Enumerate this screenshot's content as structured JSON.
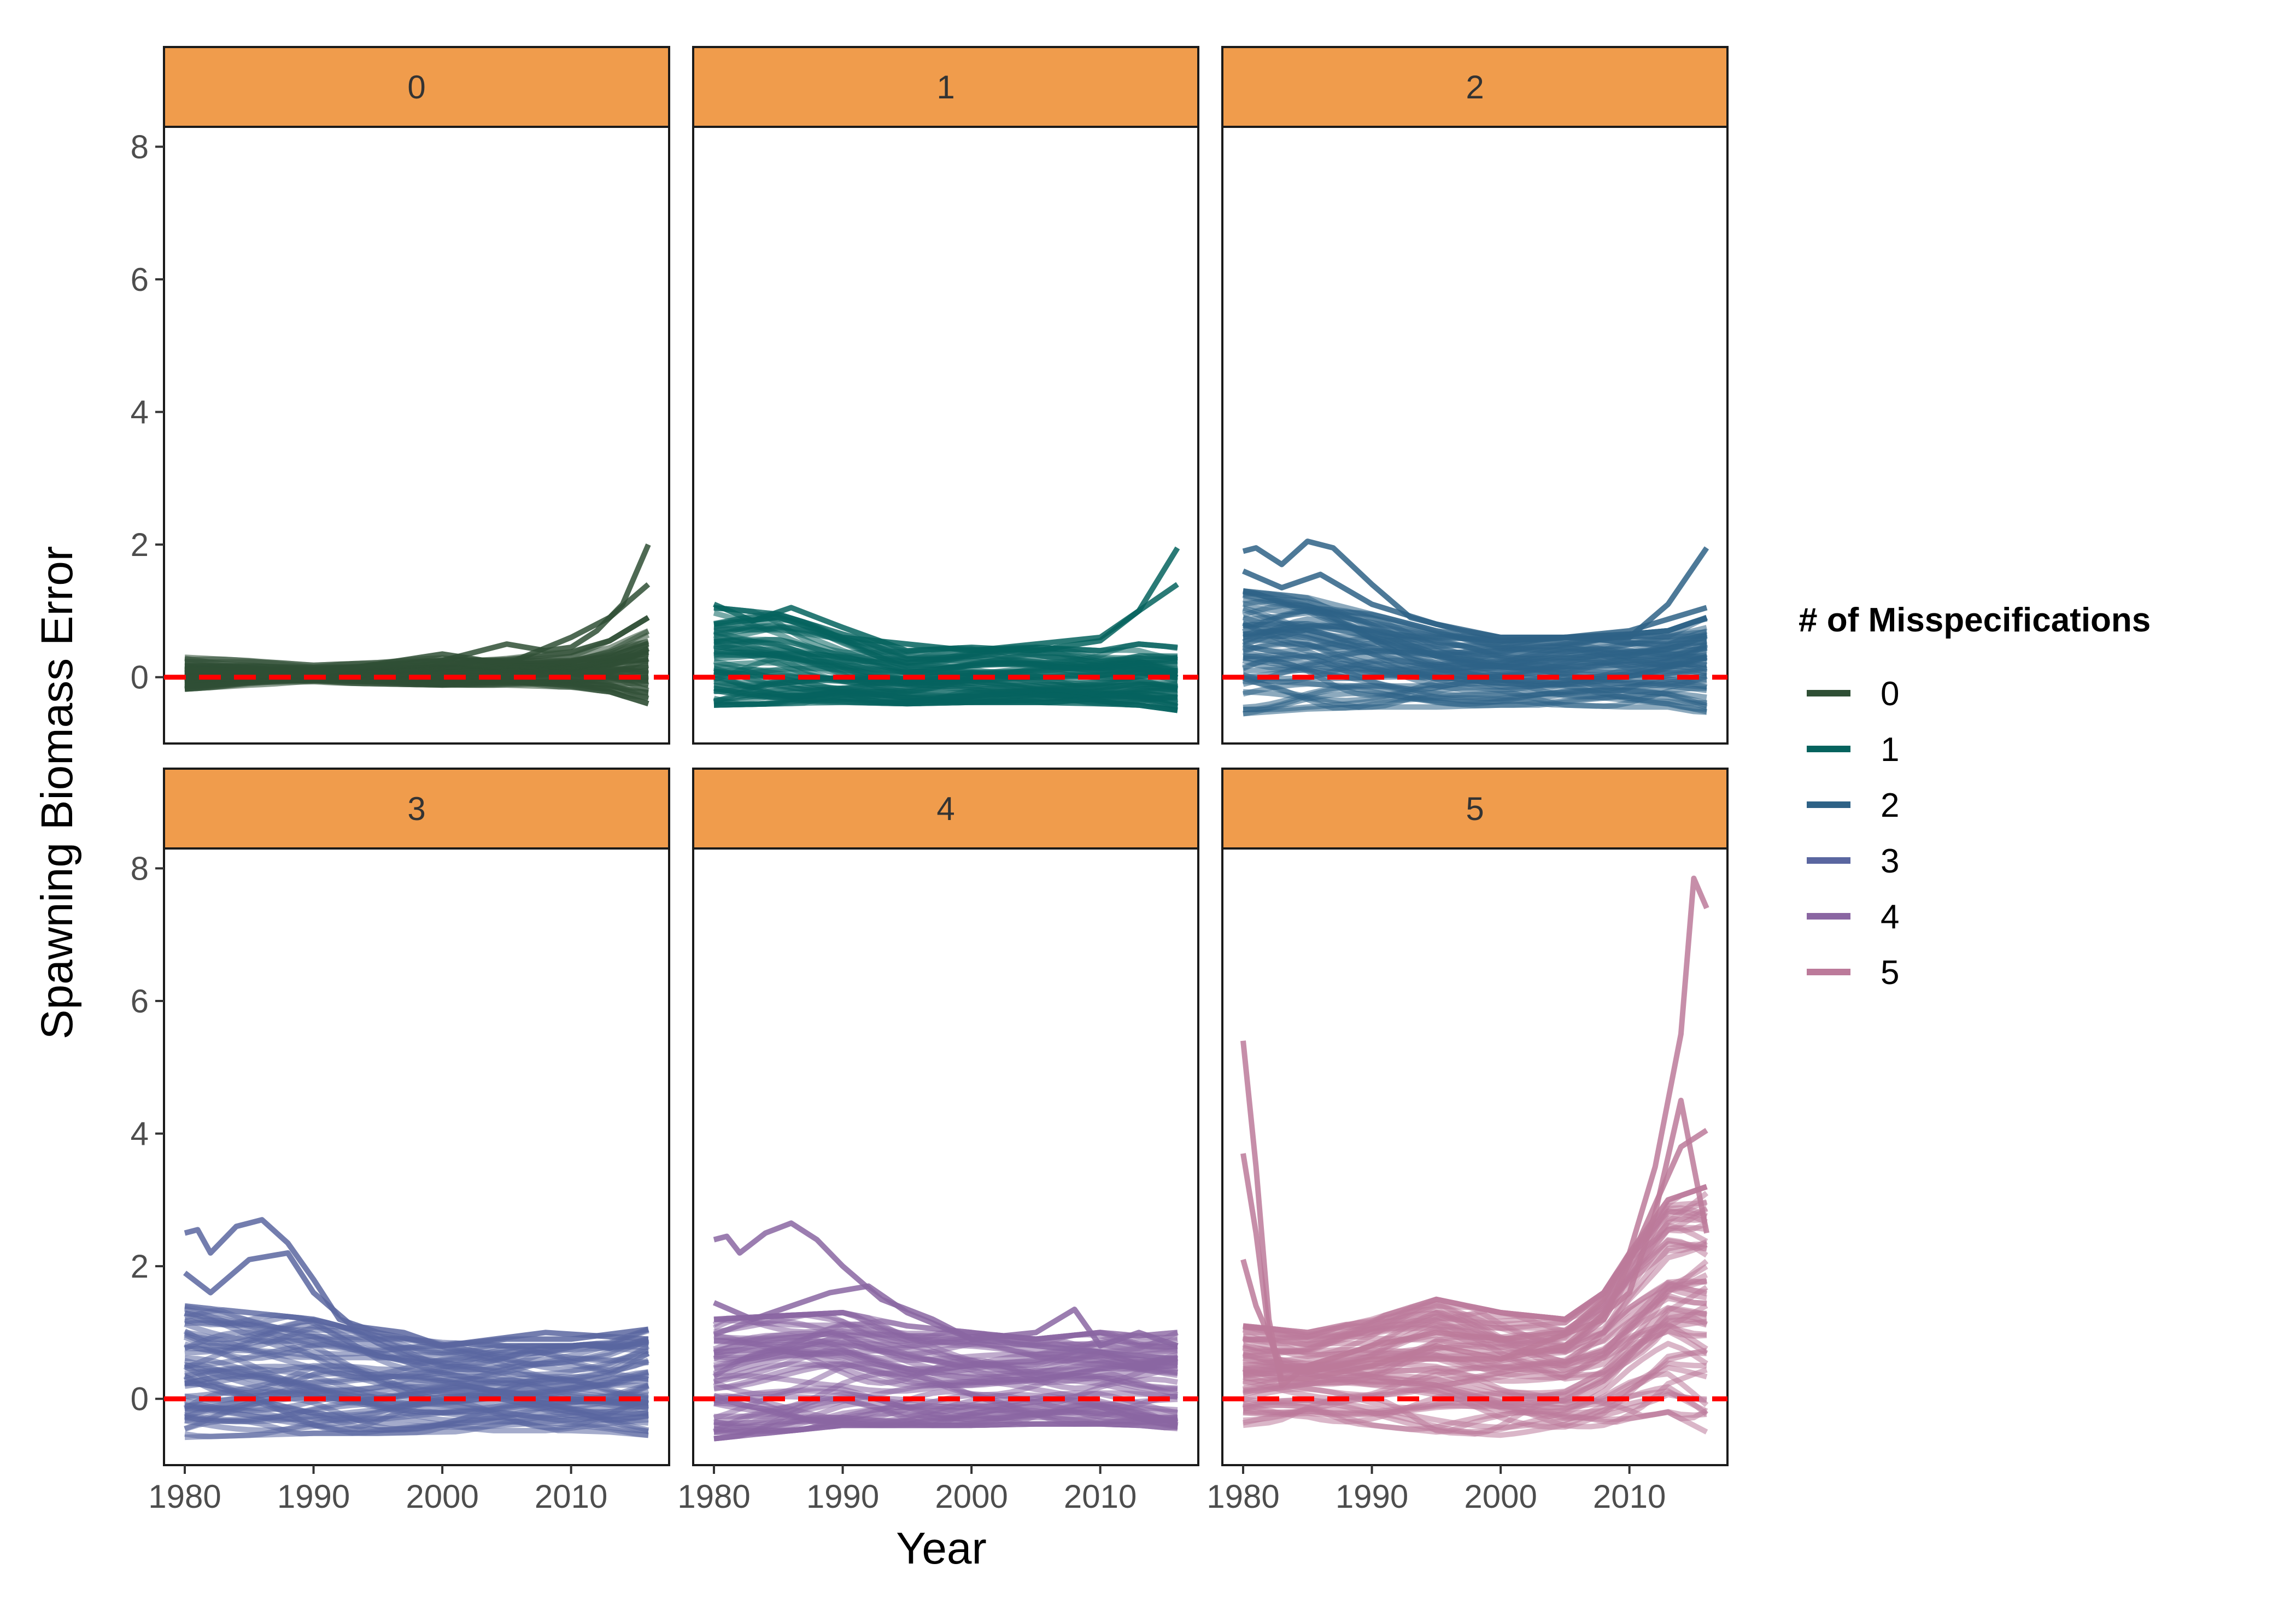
{
  "chart_data": {
    "type": "line",
    "facet_by": "# of Misspecifications",
    "facets": [
      "0",
      "1",
      "2",
      "3",
      "4",
      "5"
    ],
    "xlabel": "Year",
    "ylabel": "Spawning Biomass Error",
    "xlim": [
      1980,
      2016
    ],
    "ylim": [
      -1,
      8.3
    ],
    "x_ticks": [
      "1980",
      "1990",
      "2000",
      "2010"
    ],
    "y_ticks": [
      "0",
      "2",
      "4",
      "6",
      "8"
    ],
    "reference_line": {
      "y": 0,
      "style": "dashed",
      "color": "#ff0000"
    },
    "legend": {
      "title": "# of Misspecifications",
      "position": "right",
      "items": [
        {
          "label": "0",
          "color": "#2f4f35"
        },
        {
          "label": "1",
          "color": "#05635e"
        },
        {
          "label": "2",
          "color": "#2e6286"
        },
        {
          "label": "3",
          "color": "#5a66a0"
        },
        {
          "label": "4",
          "color": "#8a66a2"
        },
        {
          "label": "5",
          "color": "#bc7a9a"
        }
      ]
    },
    "strip_fill": "#f09c4c",
    "series": [
      {
        "name": "0",
        "color": "#2f4f35",
        "x": [
          1980,
          1985,
          1990,
          1995,
          2000,
          2005,
          2010,
          2013,
          2016
        ],
        "upper": [
          0.3,
          0.25,
          0.18,
          0.22,
          0.3,
          0.32,
          0.38,
          0.55,
          0.9
        ],
        "lower": [
          -0.18,
          -0.12,
          -0.08,
          -0.1,
          -0.12,
          -0.12,
          -0.15,
          -0.22,
          -0.4
        ],
        "extremes": [
          {
            "x": [
              1980,
              1990,
              2000,
              2005,
              2008,
              2010,
              2012,
              2014,
              2016
            ],
            "y": [
              0.1,
              0.1,
              0.25,
              0.5,
              0.4,
              0.45,
              0.7,
              1.1,
              2.0
            ]
          },
          {
            "x": [
              1980,
              1990,
              2000,
              2005,
              2010,
              2013,
              2016
            ],
            "y": [
              0.0,
              0.05,
              0.35,
              0.2,
              0.6,
              0.9,
              1.4
            ]
          }
        ]
      },
      {
        "name": "1",
        "color": "#05635e",
        "x": [
          1980,
          1985,
          1990,
          1995,
          2000,
          2005,
          2010,
          2013,
          2016
        ],
        "upper": [
          1.05,
          0.95,
          0.65,
          0.4,
          0.45,
          0.45,
          0.4,
          0.5,
          0.45
        ],
        "lower": [
          -0.42,
          -0.4,
          -0.38,
          -0.4,
          -0.38,
          -0.38,
          -0.4,
          -0.42,
          -0.5
        ],
        "extremes": [
          {
            "x": [
              1980,
              1983,
              1986,
              1990,
              1995,
              2000,
              2005,
              2010,
              2013,
              2016
            ],
            "y": [
              1.1,
              0.85,
              1.05,
              0.75,
              0.4,
              0.45,
              0.4,
              0.55,
              1.0,
              1.95
            ]
          },
          {
            "x": [
              1980,
              1985,
              1990,
              2000,
              2010,
              2016
            ],
            "y": [
              0.8,
              0.9,
              0.6,
              0.4,
              0.6,
              1.4
            ]
          }
        ]
      },
      {
        "name": "2",
        "color": "#2e6286",
        "x": [
          1980,
          1985,
          1990,
          1995,
          2000,
          2005,
          2010,
          2013,
          2016
        ],
        "upper": [
          1.3,
          1.2,
          0.95,
          0.7,
          0.55,
          0.6,
          0.65,
          0.7,
          0.9
        ],
        "lower": [
          -0.55,
          -0.48,
          -0.45,
          -0.45,
          -0.42,
          -0.42,
          -0.45,
          -0.45,
          -0.55
        ],
        "extremes": [
          {
            "x": [
              1980,
              1981,
              1983,
              1985,
              1987,
              1990,
              1993,
              1997,
              2000,
              2005,
              2010,
              2016
            ],
            "y": [
              1.9,
              1.95,
              1.7,
              2.05,
              1.95,
              1.4,
              0.9,
              0.7,
              0.6,
              0.6,
              0.7,
              1.05
            ]
          },
          {
            "x": [
              1980,
              1983,
              1986,
              1990,
              1995,
              2000,
              2010,
              2013,
              2016
            ],
            "y": [
              1.6,
              1.35,
              1.55,
              1.1,
              0.8,
              0.6,
              0.6,
              1.1,
              1.95
            ]
          }
        ]
      },
      {
        "name": "3",
        "color": "#5a66a0",
        "x": [
          1980,
          1985,
          1990,
          1995,
          2000,
          2005,
          2010,
          2013,
          2016
        ],
        "upper": [
          1.4,
          1.3,
          1.2,
          0.95,
          0.85,
          0.8,
          0.8,
          0.85,
          1.05
        ],
        "lower": [
          -0.58,
          -0.55,
          -0.52,
          -0.52,
          -0.5,
          -0.48,
          -0.48,
          -0.5,
          -0.55
        ],
        "extremes": [
          {
            "x": [
              1980,
              1981,
              1982,
              1984,
              1986,
              1988,
              1990,
              1992,
              1995,
              2000,
              2005,
              2010,
              2016
            ],
            "y": [
              2.5,
              2.55,
              2.2,
              2.6,
              2.7,
              2.35,
              1.8,
              1.2,
              1.0,
              0.8,
              0.9,
              0.9,
              1.05
            ]
          },
          {
            "x": [
              1980,
              1982,
              1985,
              1988,
              1990,
              1993,
              1997,
              2000,
              2008,
              2016
            ],
            "y": [
              1.9,
              1.6,
              2.1,
              2.2,
              1.6,
              1.1,
              1.0,
              0.8,
              1.0,
              0.9
            ]
          }
        ]
      },
      {
        "name": "4",
        "color": "#8a66a2",
        "x": [
          1980,
          1985,
          1990,
          1995,
          2000,
          2005,
          2010,
          2013,
          2016
        ],
        "upper": [
          1.2,
          1.25,
          1.3,
          1.1,
          1.0,
          0.9,
          1.0,
          0.95,
          1.0
        ],
        "lower": [
          -0.6,
          -0.5,
          -0.4,
          -0.4,
          -0.4,
          -0.38,
          -0.38,
          -0.4,
          -0.45
        ],
        "extremes": [
          {
            "x": [
              1980,
              1981,
              1982,
              1984,
              1986,
              1988,
              1990,
              1993,
              1997,
              2000,
              2005,
              2008,
              2010,
              2013,
              2016
            ],
            "y": [
              2.4,
              2.45,
              2.2,
              2.5,
              2.65,
              2.4,
              2.0,
              1.5,
              1.2,
              0.9,
              1.0,
              1.35,
              0.8,
              1.0,
              0.8
            ]
          },
          {
            "x": [
              1980,
              1983,
              1986,
              1989,
              1992,
              1995,
              2000,
              2005,
              2010,
              2016
            ],
            "y": [
              1.45,
              1.2,
              1.4,
              1.6,
              1.7,
              1.3,
              0.9,
              0.8,
              0.7,
              0.6
            ]
          }
        ]
      },
      {
        "name": "5",
        "color": "#bc7a9a",
        "x": [
          1980,
          1985,
          1990,
          1995,
          2000,
          2005,
          2008,
          2010,
          2013,
          2016
        ],
        "upper": [
          1.1,
          1.0,
          1.2,
          1.5,
          1.3,
          1.2,
          1.6,
          2.2,
          3.0,
          3.2
        ],
        "lower": [
          -0.4,
          -0.3,
          -0.4,
          -0.5,
          -0.55,
          -0.5,
          -0.4,
          -0.3,
          -0.2,
          -0.5
        ],
        "extremes": [
          {
            "x": [
              1980,
              1981,
              1982,
              1983,
              1985,
              1990,
              1995,
              2000,
              2005,
              2008,
              2010,
              2012,
              2014,
              2015,
              2016
            ],
            "y": [
              5.4,
              3.5,
              1.2,
              0.2,
              0.5,
              0.8,
              1.0,
              0.9,
              1.0,
              1.5,
              2.2,
              3.5,
              5.5,
              7.85,
              7.4
            ]
          },
          {
            "x": [
              1980,
              1981,
              1982,
              1983,
              1985,
              1990,
              1995,
              2000,
              2005,
              2010,
              2012,
              2014,
              2016
            ],
            "y": [
              3.7,
              2.5,
              1.0,
              0.3,
              0.3,
              0.5,
              0.8,
              0.6,
              0.8,
              1.6,
              2.8,
              4.5,
              2.5
            ]
          },
          {
            "x": [
              1980,
              1981,
              1983,
              1985,
              1990,
              2000,
              2008,
              2011,
              2014,
              2016
            ],
            "y": [
              2.1,
              1.4,
              0.5,
              0.4,
              0.6,
              0.6,
              1.2,
              2.5,
              3.8,
              4.05
            ]
          }
        ]
      }
    ]
  }
}
